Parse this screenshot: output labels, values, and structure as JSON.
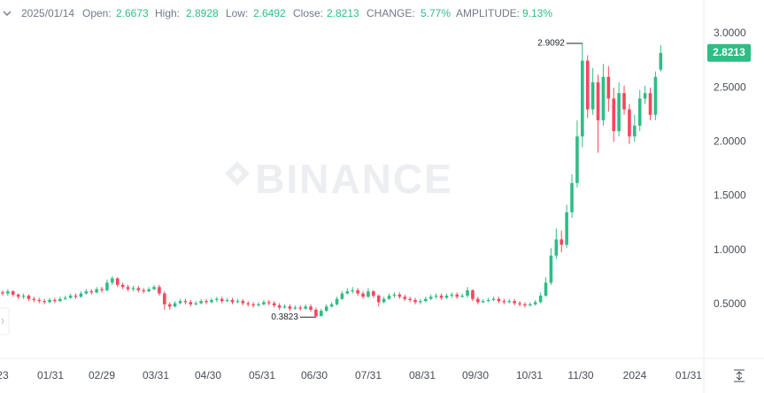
{
  "chart_data": {
    "type": "candlestick",
    "header": {
      "date": "2025/01/14",
      "open_label": "Open:",
      "high_label": "High:",
      "low_label": "Low:",
      "close_label": "Close:",
      "change_label": "CHANGE:",
      "change": "5.77%",
      "amplitude_label": "AMPLITUDE:",
      "amplitude": "9.13%"
    },
    "watermark": "BINANCE",
    "up_color": "#2ebd85",
    "down_color": "#f6465d",
    "open": [
      0.61,
      0.6,
      0.62,
      0.59,
      0.57,
      0.58,
      0.55,
      0.54,
      0.53,
      0.52,
      0.54,
      0.53,
      0.55,
      0.56,
      0.58,
      0.57,
      0.6,
      0.62,
      0.61,
      0.64,
      0.63,
      0.7,
      0.74,
      0.68,
      0.66,
      0.64,
      0.65,
      0.63,
      0.62,
      0.64,
      0.66,
      0.6,
      0.5,
      0.48,
      0.51,
      0.53,
      0.52,
      0.5,
      0.51,
      0.53,
      0.52,
      0.54,
      0.55,
      0.53,
      0.54,
      0.52,
      0.53,
      0.51,
      0.5,
      0.49,
      0.5,
      0.52,
      0.51,
      0.49,
      0.47,
      0.48,
      0.46,
      0.47,
      0.46,
      0.48,
      0.45,
      0.39,
      0.44,
      0.48,
      0.5,
      0.55,
      0.6,
      0.62,
      0.63,
      0.6,
      0.57,
      0.62,
      0.58,
      0.52,
      0.55,
      0.58,
      0.59,
      0.57,
      0.55,
      0.54,
      0.52,
      0.53,
      0.55,
      0.57,
      0.58,
      0.56,
      0.58,
      0.59,
      0.57,
      0.58,
      0.63,
      0.55,
      0.52,
      0.53,
      0.54,
      0.55,
      0.53,
      0.52,
      0.53,
      0.51,
      0.5,
      0.49,
      0.5,
      0.52,
      0.58,
      0.7,
      0.95,
      1.1,
      1.05,
      1.35,
      1.62,
      2.05,
      2.75,
      2.3,
      2.55,
      2.2,
      2.6,
      2.4,
      2.1,
      2.45,
      2.3,
      2.05,
      2.15,
      2.4,
      2.45,
      2.25,
      2.6673
    ],
    "high": [
      0.63,
      0.64,
      0.63,
      0.6,
      0.6,
      0.59,
      0.57,
      0.56,
      0.55,
      0.56,
      0.56,
      0.57,
      0.58,
      0.6,
      0.6,
      0.62,
      0.64,
      0.64,
      0.66,
      0.66,
      0.73,
      0.76,
      0.75,
      0.7,
      0.68,
      0.67,
      0.67,
      0.65,
      0.66,
      0.68,
      0.68,
      0.62,
      0.52,
      0.53,
      0.55,
      0.55,
      0.54,
      0.53,
      0.55,
      0.55,
      0.56,
      0.57,
      0.57,
      0.56,
      0.56,
      0.55,
      0.55,
      0.53,
      0.52,
      0.52,
      0.54,
      0.54,
      0.53,
      0.51,
      0.5,
      0.5,
      0.49,
      0.49,
      0.5,
      0.5,
      0.47,
      0.46,
      0.5,
      0.52,
      0.57,
      0.62,
      0.65,
      0.66,
      0.65,
      0.62,
      0.65,
      0.63,
      0.59,
      0.57,
      0.6,
      0.61,
      0.61,
      0.59,
      0.57,
      0.56,
      0.55,
      0.57,
      0.59,
      0.6,
      0.6,
      0.6,
      0.61,
      0.61,
      0.6,
      0.66,
      0.64,
      0.57,
      0.55,
      0.56,
      0.57,
      0.57,
      0.55,
      0.55,
      0.55,
      0.53,
      0.52,
      0.52,
      0.54,
      0.61,
      0.75,
      1.02,
      1.2,
      1.18,
      1.42,
      1.7,
      2.2,
      2.9092,
      2.8,
      2.68,
      2.62,
      2.72,
      2.7,
      2.5,
      2.55,
      2.52,
      2.35,
      2.25,
      2.48,
      2.52,
      2.5,
      2.65,
      2.8928
    ],
    "low": [
      0.58,
      0.58,
      0.57,
      0.55,
      0.55,
      0.53,
      0.52,
      0.51,
      0.5,
      0.51,
      0.51,
      0.52,
      0.54,
      0.55,
      0.55,
      0.56,
      0.59,
      0.59,
      0.6,
      0.61,
      0.62,
      0.68,
      0.66,
      0.64,
      0.62,
      0.62,
      0.61,
      0.6,
      0.61,
      0.63,
      0.58,
      0.45,
      0.45,
      0.47,
      0.5,
      0.5,
      0.48,
      0.49,
      0.5,
      0.5,
      0.51,
      0.52,
      0.51,
      0.52,
      0.5,
      0.51,
      0.49,
      0.48,
      0.47,
      0.48,
      0.49,
      0.49,
      0.47,
      0.45,
      0.46,
      0.44,
      0.45,
      0.44,
      0.45,
      0.43,
      0.3823,
      0.4,
      0.43,
      0.47,
      0.49,
      0.54,
      0.59,
      0.6,
      0.58,
      0.55,
      0.56,
      0.56,
      0.48,
      0.51,
      0.54,
      0.56,
      0.55,
      0.53,
      0.52,
      0.5,
      0.5,
      0.52,
      0.54,
      0.55,
      0.54,
      0.55,
      0.56,
      0.55,
      0.56,
      0.56,
      0.53,
      0.5,
      0.51,
      0.52,
      0.53,
      0.51,
      0.5,
      0.51,
      0.49,
      0.48,
      0.47,
      0.48,
      0.49,
      0.51,
      0.57,
      0.68,
      0.92,
      0.98,
      1.02,
      1.3,
      1.58,
      1.95,
      2.22,
      2.25,
      1.9,
      2.15,
      2.28,
      2.0,
      2.05,
      2.25,
      1.98,
      2.0,
      2.1,
      2.35,
      2.2,
      2.2,
      2.6492
    ],
    "close": [
      0.6,
      0.62,
      0.59,
      0.57,
      0.58,
      0.55,
      0.54,
      0.53,
      0.52,
      0.54,
      0.53,
      0.55,
      0.56,
      0.58,
      0.57,
      0.6,
      0.62,
      0.61,
      0.64,
      0.63,
      0.7,
      0.74,
      0.68,
      0.66,
      0.64,
      0.65,
      0.63,
      0.62,
      0.64,
      0.66,
      0.6,
      0.5,
      0.48,
      0.51,
      0.53,
      0.52,
      0.5,
      0.51,
      0.53,
      0.52,
      0.54,
      0.55,
      0.53,
      0.54,
      0.52,
      0.53,
      0.51,
      0.5,
      0.49,
      0.5,
      0.52,
      0.51,
      0.49,
      0.47,
      0.48,
      0.46,
      0.47,
      0.46,
      0.48,
      0.45,
      0.39,
      0.44,
      0.48,
      0.5,
      0.55,
      0.6,
      0.62,
      0.63,
      0.6,
      0.57,
      0.62,
      0.58,
      0.52,
      0.55,
      0.58,
      0.59,
      0.57,
      0.55,
      0.54,
      0.52,
      0.53,
      0.55,
      0.57,
      0.58,
      0.56,
      0.58,
      0.59,
      0.57,
      0.58,
      0.63,
      0.55,
      0.52,
      0.53,
      0.54,
      0.55,
      0.53,
      0.52,
      0.53,
      0.51,
      0.5,
      0.49,
      0.5,
      0.52,
      0.58,
      0.7,
      0.95,
      1.1,
      1.05,
      1.35,
      1.62,
      2.05,
      2.75,
      2.3,
      2.55,
      2.2,
      2.6,
      2.4,
      2.1,
      2.45,
      2.3,
      2.05,
      2.15,
      2.4,
      2.45,
      2.25,
      2.6,
      2.8213
    ],
    "xlim": [
      0,
      134.75
    ],
    "xticks": [
      {
        "value": 0.5,
        "label": "23"
      },
      {
        "value": 9.66,
        "label": "01/31"
      },
      {
        "value": 19.49,
        "label": "02/29"
      },
      {
        "value": 29.83,
        "label": "03/31"
      },
      {
        "value": 39.83,
        "label": "04/30"
      },
      {
        "value": 50.17,
        "label": "05/31"
      },
      {
        "value": 60.17,
        "label": "06/30"
      },
      {
        "value": 70.51,
        "label": "07/31"
      },
      {
        "value": 80.85,
        "label": "08/31"
      },
      {
        "value": 91.02,
        "label": "09/30"
      },
      {
        "value": 101.36,
        "label": "10/31"
      },
      {
        "value": 111.19,
        "label": "11/30"
      },
      {
        "value": 121.53,
        "label": "2024"
      },
      {
        "value": 131.86,
        "label": "01/31"
      }
    ],
    "ylim": [
      0,
      3.31
    ],
    "yticks": [
      {
        "value": 0.5,
        "label": "0.5000"
      },
      {
        "value": 1,
        "label": "1.0000"
      },
      {
        "value": 1.5,
        "label": "1.5000"
      },
      {
        "value": 2,
        "label": "2.0000"
      },
      {
        "value": 2.5,
        "label": "2.5000"
      },
      {
        "value": 3,
        "label": "3.0000"
      }
    ],
    "high_marker_index": 111,
    "low_marker_index": 60,
    "grid": false
  }
}
